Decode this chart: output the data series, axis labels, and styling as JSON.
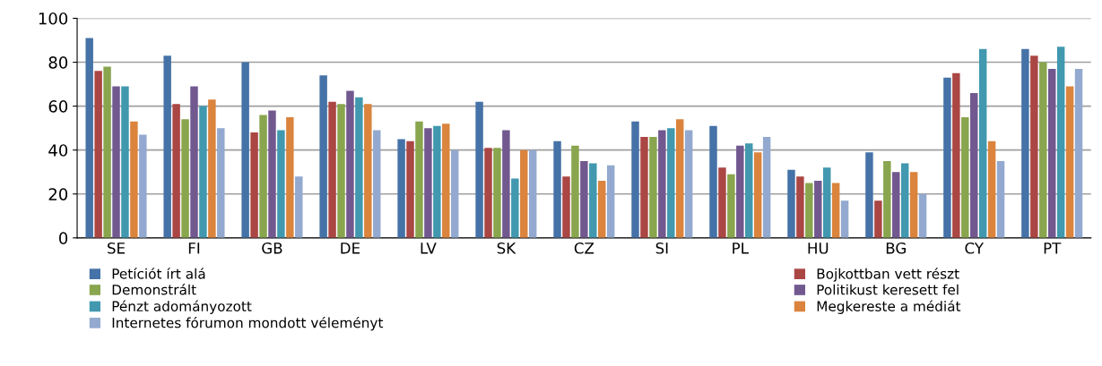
{
  "chart_data": {
    "type": "bar",
    "categories": [
      "SE",
      "FI",
      "GB",
      "DE",
      "LV",
      "SK",
      "CZ",
      "SI",
      "PL",
      "HU",
      "BG",
      "CY",
      "PT"
    ],
    "ylim": [
      0,
      100
    ],
    "yticks": [
      0,
      20,
      40,
      60,
      80,
      100
    ],
    "grid": "y",
    "legend": "bottom",
    "series": [
      {
        "name": "Petíciót írt alá",
        "color": "#4572a7",
        "values": [
          91,
          83,
          80,
          74,
          45,
          62,
          44,
          53,
          51,
          31,
          39,
          73,
          86
        ]
      },
      {
        "name": "Bojkottban vett részt",
        "color": "#aa4643",
        "values": [
          76,
          61,
          48,
          62,
          44,
          41,
          28,
          46,
          32,
          28,
          17,
          75,
          83
        ]
      },
      {
        "name": "Demonstrált",
        "color": "#89a54e",
        "values": [
          78,
          54,
          56,
          61,
          53,
          41,
          42,
          46,
          29,
          25,
          35,
          55,
          80
        ]
      },
      {
        "name": "Politikust keresett fel",
        "color": "#71588f",
        "values": [
          69,
          69,
          58,
          67,
          50,
          49,
          35,
          49,
          42,
          26,
          30,
          66,
          77
        ]
      },
      {
        "name": "Pénzt adományozott",
        "color": "#4198af",
        "values": [
          69,
          60,
          49,
          64,
          51,
          27,
          34,
          50,
          43,
          32,
          34,
          86,
          87
        ]
      },
      {
        "name": "Megkereste a médiát",
        "color": "#db843d",
        "values": [
          53,
          63,
          55,
          61,
          52,
          40,
          26,
          54,
          39,
          25,
          30,
          44,
          69
        ]
      },
      {
        "name": "Internetes fórumon mondott véleményt",
        "color": "#93a9cf",
        "values": [
          47,
          50,
          28,
          49,
          40,
          40,
          33,
          49,
          46,
          17,
          20,
          35,
          77
        ]
      }
    ]
  }
}
